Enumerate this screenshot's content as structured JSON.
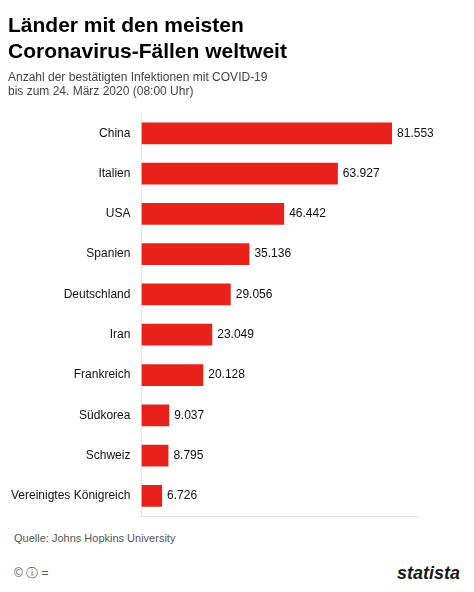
{
  "chart_data": {
    "type": "bar",
    "orientation": "horizontal",
    "title": [
      "Länder mit den meisten",
      "Coronavirus-Fällen weltweit"
    ],
    "subtitle": [
      "Anzahl der bestätigten Infektionen mit COVID-19",
      "bis zum 24. März 2020 (08:00 Uhr)"
    ],
    "categories": [
      "China",
      "Italien",
      "USA",
      "Spanien",
      "Deutschland",
      "Iran",
      "Frankreich",
      "Südkorea",
      "Schweiz",
      "Vereinigtes Königreich"
    ],
    "values": [
      81553,
      63927,
      46442,
      35136,
      29056,
      23049,
      20128,
      9037,
      8795,
      6726
    ],
    "value_labels": [
      "81.553",
      "63.927",
      "46.442",
      "35.136",
      "29.056",
      "23.049",
      "20.128",
      "9.037",
      "8.795",
      "6.726"
    ],
    "data_labels": true,
    "color": "#e8221b",
    "xlim": [
      0,
      90000
    ],
    "tick_labels": "y",
    "grid": false,
    "annotations": [
      "Quelle: Johns Hopkins University",
      "© ⓘ =",
      "statista"
    ]
  }
}
